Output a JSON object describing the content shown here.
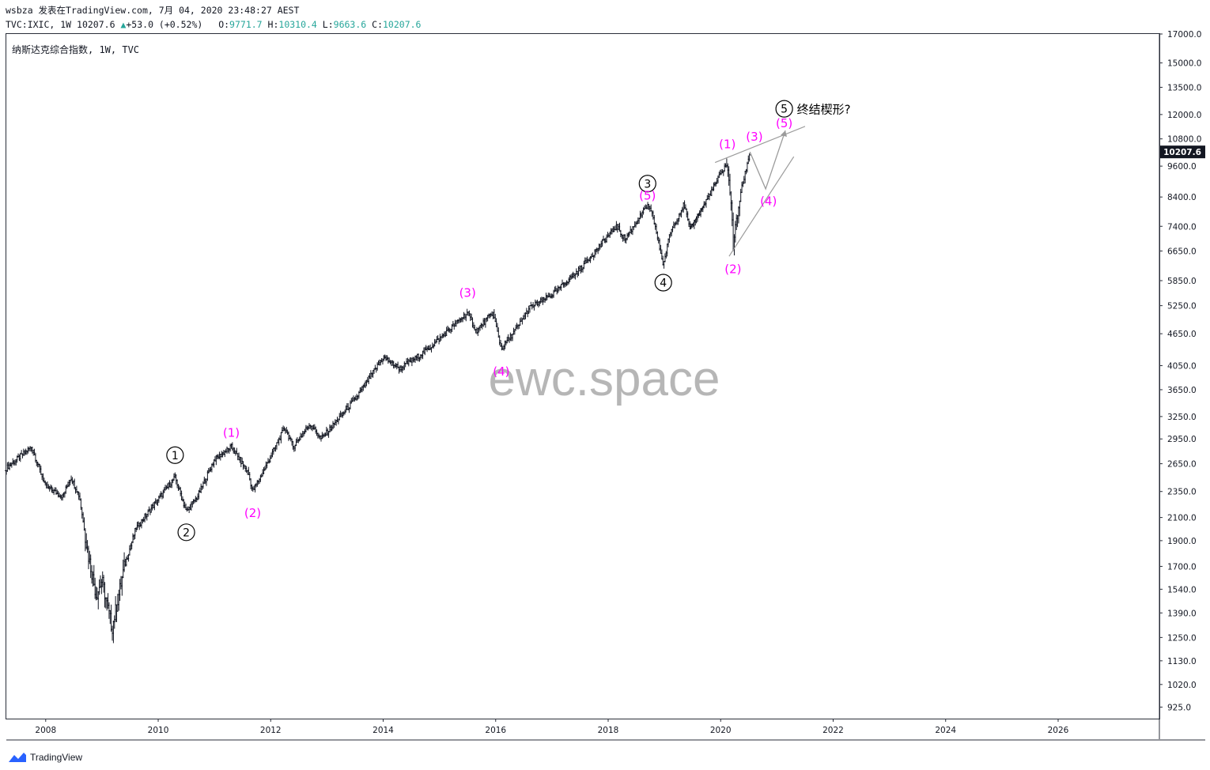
{
  "header": {
    "line1": "wsbza 发表在TradingView.com, 7月 04, 2020 23:48:27 AEST",
    "symbol_full": "TVC:IXIC, 1W",
    "last": "10207.6",
    "change": "+53.0 (+0.52%)",
    "open_label": "O:",
    "open": "9771.7",
    "high_label": "H:",
    "high": "10310.4",
    "low_label": "L:",
    "low": "9663.6",
    "close_label": "C:",
    "close": "10207.6"
  },
  "symbol_title": "纳斯达克综合指数, 1W, TVC",
  "watermark": "ewc.space",
  "footer": {
    "brand": "TradingView"
  },
  "colors": {
    "candle": "#131722",
    "wave_minor": "#ff00ff",
    "wave_major": "#000000",
    "trendline": "#9b9b9b",
    "current_price_bg": "#131722",
    "up": "#26a69a",
    "axis_text": "#131722"
  },
  "chart_data": {
    "type": "ohlc",
    "scale": "log",
    "x_ticks": [
      "2008",
      "2010",
      "2012",
      "2014",
      "2016",
      "2018",
      "2020",
      "2022",
      "2024",
      "2026"
    ],
    "y_ticks": [
      "925.0",
      "1020.0",
      "1130.0",
      "1250.0",
      "1390.0",
      "1540.0",
      "1700.0",
      "1900.0",
      "2100.0",
      "2350.0",
      "2650.0",
      "2950.0",
      "3250.0",
      "3650.0",
      "4050.0",
      "4650.0",
      "5250.0",
      "5850.0",
      "6650.0",
      "7400.0",
      "8400.0",
      "9600.0",
      "10800.0",
      "12000.0",
      "13500.0",
      "15000.0",
      "17000.0"
    ],
    "ylim": [
      880,
      17000
    ],
    "xlim": [
      "2007.3",
      "2027.8"
    ],
    "current_price": "10207.6",
    "path": [
      [
        "2007.3",
        2600
      ],
      [
        "2007.75",
        2850
      ],
      [
        "2008.0",
        2400
      ],
      [
        "2008.3",
        2300
      ],
      [
        "2008.45",
        2500
      ],
      [
        "2008.6",
        2300
      ],
      [
        "2008.75",
        1800
      ],
      [
        "2008.9",
        1500
      ],
      [
        "2009.0",
        1600
      ],
      [
        "2009.18",
        1300
      ],
      [
        "2009.4",
        1700
      ],
      [
        "2009.6",
        2000
      ],
      [
        "2009.9",
        2200
      ],
      [
        "2010.3",
        2500
      ],
      [
        "2010.5",
        2150
      ],
      [
        "2010.7",
        2300
      ],
      [
        "2011.0",
        2700
      ],
      [
        "2011.3",
        2850
      ],
      [
        "2011.6",
        2550
      ],
      [
        "2011.68",
        2350
      ],
      [
        "2011.9",
        2600
      ],
      [
        "2012.25",
        3100
      ],
      [
        "2012.4",
        2850
      ],
      [
        "2012.7",
        3150
      ],
      [
        "2012.9",
        2950
      ],
      [
        "2013.5",
        3500
      ],
      [
        "2014.0",
        4200
      ],
      [
        "2014.3",
        4000
      ],
      [
        "2014.8",
        4350
      ],
      [
        "2015.0",
        4550
      ],
      [
        "2015.5",
        5100
      ],
      [
        "2015.65",
        4700
      ],
      [
        "2015.95",
        5100
      ],
      [
        "2016.1",
        4350
      ],
      [
        "2016.4",
        4800
      ],
      [
        "2016.6",
        5200
      ],
      [
        "2017.0",
        5500
      ],
      [
        "2017.5",
        6150
      ],
      [
        "2018.0",
        7100
      ],
      [
        "2018.15",
        7400
      ],
      [
        "2018.3",
        7000
      ],
      [
        "2018.7",
        8100
      ],
      [
        "2018.8",
        7700
      ],
      [
        "2018.98",
        6250
      ],
      [
        "2019.1",
        7200
      ],
      [
        "2019.35",
        8150
      ],
      [
        "2019.45",
        7300
      ],
      [
        "2019.7",
        8100
      ],
      [
        "2020.1",
        9700
      ],
      [
        "2020.18",
        8500
      ],
      [
        "2020.22",
        6800
      ],
      [
        "2020.35",
        8500
      ],
      [
        "2020.52",
        10207.6
      ]
    ],
    "wave_labels": [
      {
        "text": "①",
        "x": "2010.3",
        "y": 2750,
        "style": "major"
      },
      {
        "text": "②",
        "x": "2010.5",
        "y": 1970,
        "style": "major"
      },
      {
        "text": "(1)",
        "x": "2011.3",
        "y": 3030,
        "style": "minor"
      },
      {
        "text": "(2)",
        "x": "2011.68",
        "y": 2140,
        "style": "minor"
      },
      {
        "text": "(3)",
        "x": "2015.5",
        "y": 5550,
        "style": "minor"
      },
      {
        "text": "(4)",
        "x": "2016.1",
        "y": 3950,
        "style": "minor"
      },
      {
        "text": "③",
        "x": "2018.7",
        "y": 8900,
        "style": "major"
      },
      {
        "text": "(5)",
        "x": "2018.7",
        "y": 8450,
        "style": "minor"
      },
      {
        "text": "④",
        "x": "2018.98",
        "y": 5800,
        "style": "major"
      },
      {
        "text": "(1)",
        "x": "2020.12",
        "y": 10550,
        "style": "minor"
      },
      {
        "text": "(2)",
        "x": "2020.22",
        "y": 6150,
        "style": "minor"
      },
      {
        "text": "(3)",
        "x": "2020.6",
        "y": 10900,
        "style": "minor"
      },
      {
        "text": "(4)",
        "x": "2020.85",
        "y": 8250,
        "style": "minor"
      },
      {
        "text": "(5)",
        "x": "2021.13",
        "y": 11550,
        "style": "minor"
      },
      {
        "text": "⑤",
        "x": "2021.13",
        "y": 12300,
        "style": "major"
      }
    ],
    "annotation": "终结楔形?",
    "trendlines": [
      {
        "name": "wedge-upper",
        "from": [
          "2019.9",
          9750
        ],
        "to": [
          "2021.5",
          11400
        ]
      },
      {
        "name": "wedge-lower",
        "from": [
          "2020.15",
          6500
        ],
        "to": [
          "2021.3",
          10000
        ]
      },
      {
        "name": "triangle-2019",
        "from": [
          "2019.45",
          7300
        ],
        "to": [
          "2019.7",
          8100
        ]
      }
    ],
    "projection": [
      [
        "2020.52",
        10207.6
      ],
      [
        "2020.8",
        8700
      ],
      [
        "2021.15",
        11200
      ]
    ]
  }
}
